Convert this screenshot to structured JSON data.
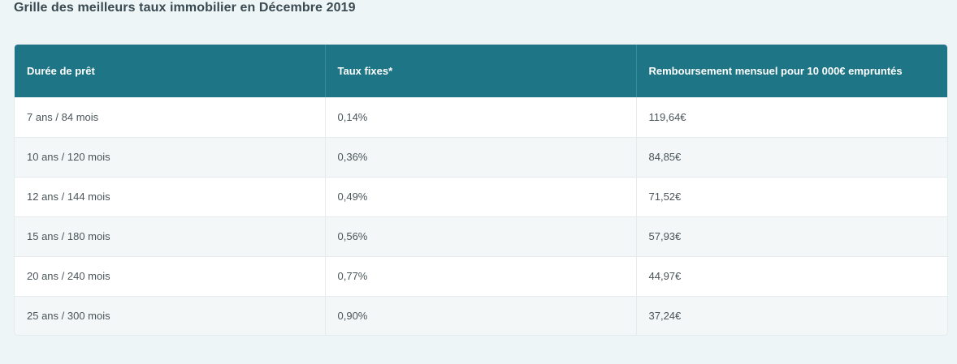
{
  "page": {
    "title": "Grille des meilleurs taux immobilier en Décembre 2019"
  },
  "table": {
    "headers": [
      "Durée de prêt",
      "Taux fixes*",
      "Remboursement mensuel pour 10 000€ empruntés"
    ],
    "rows": [
      [
        "7 ans / 84 mois",
        "0,14%",
        "119,64€"
      ],
      [
        "10 ans / 120 mois",
        "0,36%",
        "84,85€"
      ],
      [
        "12 ans / 144 mois",
        "0,49%",
        "71,52€"
      ],
      [
        "15 ans / 180 mois",
        "0,56%",
        "57,93€"
      ],
      [
        "20 ans / 240 mois",
        "0,77%",
        "44,97€"
      ],
      [
        "25 ans / 300 mois",
        "0,90%",
        "37,24€"
      ]
    ]
  },
  "colors": {
    "background": "#eef5f6",
    "header_bg": "#1d7586",
    "row_alt": "#f4f7f8"
  }
}
